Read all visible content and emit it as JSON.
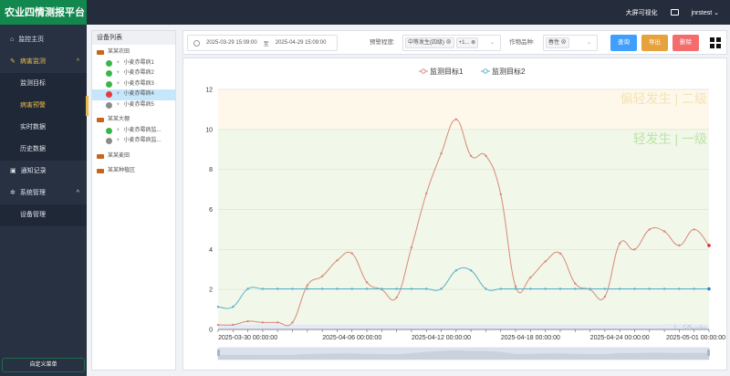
{
  "header": {
    "logo": "农业四情测报平台",
    "bigscreen": "大屏可视化",
    "message_icon": "message-icon",
    "user": "jnrstest"
  },
  "sidebar": {
    "items": [
      {
        "label": "监控主页",
        "icon": "home-icon"
      },
      {
        "label": "病害监测",
        "icon": "bug-icon",
        "expanded": true,
        "children": [
          "监测目标",
          "病害预警",
          "实时数据",
          "历史数据"
        ],
        "active_child": "病害预警"
      },
      {
        "label": "通知记录",
        "icon": "id-card-icon"
      },
      {
        "label": "系统管理",
        "icon": "gear-icon",
        "expanded": true,
        "children": [
          "设备管理"
        ]
      }
    ],
    "custom_menu": "自定义菜单"
  },
  "devices": {
    "title": "设备列表",
    "groups": [
      {
        "name": "某某农田",
        "open": true,
        "items": [
          {
            "name": "小麦赤霉病1",
            "status": "online"
          },
          {
            "name": "小麦赤霉病2",
            "status": "online"
          },
          {
            "name": "小麦赤霉病3",
            "status": "online"
          },
          {
            "name": "小麦赤霉病4",
            "status": "alarm",
            "selected": true
          },
          {
            "name": "小麦赤霉病5",
            "status": "offline"
          }
        ]
      },
      {
        "name": "某某大棚",
        "open": true,
        "items": [
          {
            "name": "小麦赤霉病监...",
            "status": "online"
          },
          {
            "name": "小麦赤霉病监...",
            "status": "offline"
          }
        ]
      },
      {
        "name": "某某麦田",
        "open": false,
        "items": []
      },
      {
        "name": "某某种植区",
        "open": false,
        "items": []
      }
    ],
    "status_colors": {
      "online": "#3bb54a",
      "alarm": "#e5393b",
      "offline": "#8c8c8c"
    }
  },
  "toolbar": {
    "start": "2025-03-29 15:09:00",
    "sep": "至",
    "end": "2025-04-29 15:09:00",
    "level_label": "预警程度:",
    "level_tags": [
      "中等发生(四级)",
      "+1..."
    ],
    "crop_label": "作物品种:",
    "crop_tags": [
      "春性"
    ],
    "query": "查询",
    "export": "导出",
    "delete": "删除",
    "colors": {
      "query": "#409eff",
      "export": "#e6a23c",
      "delete": "#f56c6c"
    }
  },
  "chart_data": {
    "type": "line",
    "legend": [
      "监测目标1",
      "监测目标2"
    ],
    "legend_position": "top-center",
    "ylim": [
      0,
      12
    ],
    "yticks": [
      0,
      2,
      4,
      6,
      8,
      10,
      12
    ],
    "xticks": [
      "2025-03-30 00:00:00",
      "2025-04-06 00:00:00",
      "2025-04-12 00:00:00",
      "2025-04-18 00:00:00",
      "2025-04-24 00:00:00",
      "2025-05-01 00:00:00"
    ],
    "x": [
      "2025-03-28",
      "2025-03-29",
      "2025-03-30",
      "2025-03-31",
      "2025-04-01",
      "2025-04-02",
      "2025-04-03",
      "2025-04-04",
      "2025-04-05",
      "2025-04-06",
      "2025-04-07",
      "2025-04-08",
      "2025-04-09",
      "2025-04-10",
      "2025-04-11",
      "2025-04-12",
      "2025-04-13",
      "2025-04-14",
      "2025-04-15",
      "2025-04-16",
      "2025-04-17",
      "2025-04-18",
      "2025-04-19",
      "2025-04-20",
      "2025-04-21",
      "2025-04-22",
      "2025-04-23",
      "2025-04-24",
      "2025-04-25",
      "2025-04-26",
      "2025-04-27",
      "2025-04-28",
      "2025-04-29",
      "2025-04-30"
    ],
    "series": [
      {
        "name": "监测目标1",
        "color": "#d98a78",
        "values": [
          0.23,
          0.23,
          0.41,
          0.35,
          0.35,
          0.35,
          2.2,
          2.66,
          3.45,
          3.8,
          2.36,
          2.0,
          1.6,
          4.1,
          6.8,
          8.8,
          10.5,
          8.68,
          8.68,
          6.76,
          2.15,
          2.6,
          3.4,
          3.8,
          2.3,
          2.0,
          1.64,
          4.3,
          4.0,
          5.0,
          4.9,
          4.2,
          5.0,
          4.2
        ]
      },
      {
        "name": "监测目标2",
        "color": "#5ab1c9",
        "values": [
          1.13,
          1.13,
          2.03,
          2.03,
          2.03,
          2.03,
          2.03,
          2.03,
          2.03,
          2.03,
          2.03,
          2.03,
          2.03,
          2.03,
          2.03,
          2.03,
          2.95,
          2.95,
          2.03,
          2.03,
          2.03,
          2.03,
          2.03,
          2.03,
          2.03,
          2.03,
          2.03,
          2.03,
          2.03,
          2.03,
          2.03,
          2.03,
          2.03,
          2.03
        ]
      }
    ],
    "bands": [
      {
        "from": 0,
        "to": 0.25,
        "label": "不发生",
        "color": "#e6eaf7",
        "text": "#c3cdf0"
      },
      {
        "from": 0.25,
        "to": 10,
        "label": "轻发生 | 一级",
        "color": "#f1f7e9",
        "text": "#bfe3a8"
      },
      {
        "from": 10,
        "to": 12,
        "label": "偏轻发生 | 二级",
        "color": "#fdf8ea",
        "text": "#f3e3b8"
      }
    ],
    "grid": true,
    "datazoom": [
      0,
      100
    ]
  }
}
